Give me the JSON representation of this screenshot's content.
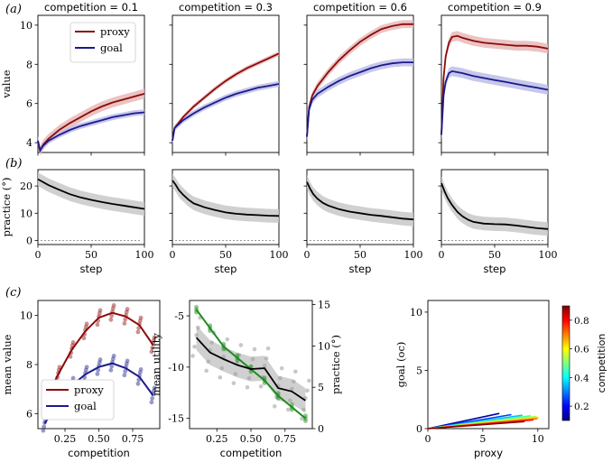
{
  "figure": {
    "row_a_label": "(a)",
    "row_b_label": "(b)",
    "row_c_label": "(c)"
  },
  "chart_data": [
    {
      "type": "line",
      "id": "a1",
      "title": "competition = 0.1",
      "xlabel": "",
      "ylabel": "value",
      "xlim": [
        0,
        100
      ],
      "ylim": [
        3.5,
        10.5
      ],
      "xticks": [
        0,
        50,
        100
      ],
      "yticks": [
        4,
        6,
        8,
        10
      ],
      "legend": {
        "placement": "top-left",
        "entries": [
          "proxy",
          "goal"
        ]
      },
      "series": [
        {
          "name": "proxy",
          "color": "#8b0a0a",
          "band": 0.25,
          "x": [
            0,
            2,
            5,
            10,
            20,
            30,
            40,
            50,
            60,
            70,
            80,
            90,
            100
          ],
          "values": [
            4.1,
            3.6,
            3.9,
            4.2,
            4.65,
            5.0,
            5.3,
            5.6,
            5.85,
            6.05,
            6.2,
            6.35,
            6.5
          ]
        },
        {
          "name": "goal",
          "color": "#1a1a8c",
          "band": 0.15,
          "x": [
            0,
            2,
            5,
            10,
            20,
            30,
            40,
            50,
            60,
            70,
            80,
            90,
            100
          ],
          "values": [
            4.1,
            3.6,
            3.85,
            4.1,
            4.4,
            4.65,
            4.85,
            5.0,
            5.15,
            5.3,
            5.4,
            5.5,
            5.55
          ]
        }
      ]
    },
    {
      "type": "line",
      "id": "a2",
      "title": "competition = 0.3",
      "xlabel": "",
      "ylabel": "",
      "xlim": [
        0,
        100
      ],
      "ylim": [
        3.5,
        10.5
      ],
      "xticks": [
        0,
        50,
        100
      ],
      "yticks": [
        4,
        6,
        8,
        10
      ],
      "series": [
        {
          "name": "proxy",
          "color": "#8b0a0a",
          "band": 0.12,
          "x": [
            0,
            2,
            5,
            10,
            20,
            30,
            40,
            50,
            60,
            70,
            80,
            90,
            100
          ],
          "values": [
            4.1,
            4.75,
            4.95,
            5.3,
            5.85,
            6.3,
            6.75,
            7.15,
            7.5,
            7.8,
            8.05,
            8.3,
            8.55
          ]
        },
        {
          "name": "goal",
          "color": "#1a1a8c",
          "band": 0.15,
          "x": [
            0,
            2,
            5,
            10,
            20,
            30,
            40,
            50,
            60,
            70,
            80,
            90,
            100
          ],
          "values": [
            4.1,
            4.75,
            4.9,
            5.15,
            5.5,
            5.8,
            6.05,
            6.3,
            6.5,
            6.65,
            6.8,
            6.9,
            7.0
          ]
        }
      ]
    },
    {
      "type": "line",
      "id": "a3",
      "title": "competition = 0.6",
      "xlabel": "",
      "ylabel": "",
      "xlim": [
        0,
        100
      ],
      "ylim": [
        3.5,
        10.5
      ],
      "xticks": [
        0,
        50,
        100
      ],
      "yticks": [
        4,
        6,
        8,
        10
      ],
      "series": [
        {
          "name": "proxy",
          "color": "#8b0a0a",
          "band": 0.2,
          "x": [
            0,
            2,
            5,
            10,
            20,
            30,
            40,
            50,
            60,
            70,
            80,
            90,
            100
          ],
          "values": [
            4.3,
            5.8,
            6.4,
            6.9,
            7.6,
            8.2,
            8.7,
            9.15,
            9.5,
            9.8,
            9.95,
            10.05,
            10.05
          ]
        },
        {
          "name": "goal",
          "color": "#1a1a8c",
          "band": 0.2,
          "x": [
            0,
            2,
            5,
            10,
            20,
            30,
            40,
            50,
            60,
            70,
            80,
            90,
            100
          ],
          "values": [
            4.3,
            5.7,
            6.2,
            6.5,
            6.85,
            7.15,
            7.4,
            7.6,
            7.8,
            7.95,
            8.05,
            8.1,
            8.1
          ]
        }
      ]
    },
    {
      "type": "line",
      "id": "a4",
      "title": "competition = 0.9",
      "xlabel": "",
      "ylabel": "",
      "xlim": [
        0,
        100
      ],
      "ylim": [
        3.5,
        10.5
      ],
      "xticks": [
        0,
        50,
        100
      ],
      "yticks": [
        4,
        6,
        8,
        10
      ],
      "series": [
        {
          "name": "proxy",
          "color": "#8b0a0a",
          "band": 0.25,
          "x": [
            0,
            2,
            4,
            7,
            10,
            15,
            20,
            30,
            40,
            50,
            60,
            70,
            80,
            90,
            100
          ],
          "values": [
            4.4,
            7.3,
            8.4,
            9.1,
            9.4,
            9.45,
            9.35,
            9.2,
            9.1,
            9.05,
            9.0,
            8.95,
            8.95,
            8.9,
            8.8
          ]
        },
        {
          "name": "goal",
          "color": "#1a1a8c",
          "band": 0.25,
          "x": [
            0,
            2,
            4,
            7,
            10,
            15,
            20,
            30,
            40,
            50,
            60,
            70,
            80,
            90,
            100
          ],
          "values": [
            4.4,
            6.4,
            7.1,
            7.55,
            7.65,
            7.6,
            7.55,
            7.4,
            7.3,
            7.2,
            7.1,
            7.0,
            6.9,
            6.8,
            6.7
          ]
        }
      ]
    },
    {
      "type": "line",
      "id": "b1",
      "title": "",
      "xlabel": "step",
      "ylabel": "practice (°)",
      "xlim": [
        0,
        100
      ],
      "ylim": [
        -1.5,
        26
      ],
      "xticks": [
        0,
        50,
        100
      ],
      "yticks": [
        0,
        10,
        20
      ],
      "baseline": 0,
      "series": [
        {
          "name": "practice",
          "color": "#000000",
          "band": 2.5,
          "x": [
            0,
            10,
            20,
            30,
            40,
            50,
            60,
            70,
            80,
            90,
            100
          ],
          "values": [
            22.5,
            20.3,
            18.6,
            17.0,
            15.8,
            14.9,
            14.1,
            13.4,
            12.8,
            12.2,
            11.6
          ]
        }
      ]
    },
    {
      "type": "line",
      "id": "b2",
      "title": "",
      "xlabel": "step",
      "ylabel": "",
      "xlim": [
        0,
        100
      ],
      "ylim": [
        -1.5,
        26
      ],
      "xticks": [
        0,
        50,
        100
      ],
      "yticks": [
        0,
        10,
        20
      ],
      "baseline": 0,
      "series": [
        {
          "name": "practice",
          "color": "#000000",
          "band": 2.5,
          "x": [
            0,
            3,
            6,
            10,
            15,
            20,
            30,
            40,
            50,
            60,
            70,
            80,
            90,
            100
          ],
          "values": [
            22.0,
            20.5,
            18.5,
            16.8,
            15.0,
            13.6,
            12.2,
            11.2,
            10.3,
            9.8,
            9.5,
            9.3,
            9.1,
            9.0
          ]
        }
      ]
    },
    {
      "type": "line",
      "id": "b3",
      "title": "",
      "xlabel": "step",
      "ylabel": "",
      "xlim": [
        0,
        100
      ],
      "ylim": [
        -1.5,
        26
      ],
      "xticks": [
        0,
        50,
        100
      ],
      "yticks": [
        0,
        10,
        20
      ],
      "baseline": 0,
      "series": [
        {
          "name": "practice",
          "color": "#000000",
          "band": 2.5,
          "x": [
            0,
            3,
            6,
            10,
            15,
            20,
            30,
            40,
            50,
            60,
            70,
            80,
            90,
            100
          ],
          "values": [
            21.5,
            19.0,
            17.0,
            15.3,
            13.8,
            12.8,
            11.5,
            10.6,
            10.0,
            9.4,
            9.0,
            8.5,
            8.0,
            7.7
          ]
        }
      ]
    },
    {
      "type": "line",
      "id": "b4",
      "title": "",
      "xlabel": "step",
      "ylabel": "",
      "xlim": [
        0,
        100
      ],
      "ylim": [
        -1.5,
        26
      ],
      "xticks": [
        0,
        50,
        100
      ],
      "yticks": [
        0,
        10,
        20
      ],
      "baseline": 0,
      "series": [
        {
          "name": "practice",
          "color": "#000000",
          "band": 2.5,
          "x": [
            0,
            3,
            6,
            10,
            15,
            20,
            25,
            30,
            40,
            50,
            60,
            70,
            80,
            90,
            100
          ],
          "values": [
            21.0,
            18.0,
            15.5,
            13.0,
            10.5,
            8.8,
            7.6,
            6.8,
            6.2,
            6.0,
            5.9,
            5.5,
            5.0,
            4.5,
            4.2
          ]
        }
      ]
    },
    {
      "type": "line",
      "id": "c1",
      "title": "",
      "xlabel": "competition",
      "ylabel": "mean value",
      "xlim": [
        0.05,
        0.95
      ],
      "ylim": [
        5.4,
        10.6
      ],
      "xticks": [
        0.25,
        0.5,
        0.75
      ],
      "xticklabels": [
        "0.25",
        "0.50",
        "0.75"
      ],
      "yticks": [
        6,
        8,
        10
      ],
      "legend": {
        "placement": "bottom-center",
        "entries": [
          "proxy",
          "goal"
        ]
      },
      "categories": [
        0.1,
        0.2,
        0.3,
        0.4,
        0.5,
        0.6,
        0.7,
        0.8,
        0.9
      ],
      "series": [
        {
          "name": "proxy",
          "color": "#8b0a0a",
          "values": [
            6.5,
            7.6,
            8.6,
            9.35,
            9.9,
            10.1,
            9.95,
            9.6,
            8.8
          ]
        },
        {
          "name": "goal",
          "color": "#1a1a8c",
          "values": [
            5.6,
            6.5,
            7.15,
            7.6,
            7.9,
            8.05,
            7.85,
            7.5,
            6.75
          ]
        }
      ]
    },
    {
      "type": "line",
      "id": "c2",
      "title": "",
      "xlabel": "competition",
      "ylabel": "mean utility",
      "ylabel_right": "practice (°)",
      "xlim": [
        0.05,
        0.95
      ],
      "ylim": [
        -16,
        -3.5
      ],
      "ylim_right": [
        0,
        15.5
      ],
      "xticks": [
        0.25,
        0.5,
        0.75
      ],
      "xticklabels": [
        "0.25",
        "0.50",
        "0.75"
      ],
      "yticks": [
        -15,
        -10,
        -5
      ],
      "yticks_right": [
        0,
        5,
        10,
        15
      ],
      "categories": [
        0.1,
        0.2,
        0.3,
        0.4,
        0.5,
        0.6,
        0.7,
        0.8,
        0.9
      ],
      "series": [
        {
          "name": "mean utility",
          "axis": "left",
          "color": "#1e8c1e",
          "values": [
            -4.4,
            -6.2,
            -8.0,
            -9.1,
            -10.2,
            -11.3,
            -12.8,
            -13.9,
            -15.0
          ]
        },
        {
          "name": "practice",
          "axis": "right",
          "color": "#000000",
          "band": 1.5,
          "values": [
            11.0,
            9.2,
            8.4,
            7.7,
            7.2,
            7.3,
            4.9,
            4.5,
            3.4
          ]
        }
      ]
    },
    {
      "type": "line",
      "id": "c3",
      "title": "",
      "xlabel": "proxy",
      "ylabel": "goal (oc)",
      "xlim": [
        0,
        11
      ],
      "ylim": [
        0,
        11
      ],
      "xticks": [
        0,
        5,
        10
      ],
      "yticks": [
        0,
        5,
        10
      ],
      "colorbar": {
        "label": "competition",
        "range": [
          0.1,
          0.9
        ],
        "ticks": [
          "0.2",
          "0.4",
          "0.6",
          "0.8"
        ]
      },
      "series": [
        {
          "name": "0.1",
          "color": "#0000a0",
          "end": [
            6.5,
            1.3
          ]
        },
        {
          "name": "0.2",
          "color": "#0040ff",
          "end": [
            7.6,
            1.2
          ]
        },
        {
          "name": "0.3",
          "color": "#00c0ff",
          "end": [
            8.6,
            1.15
          ]
        },
        {
          "name": "0.4",
          "color": "#40ffb0",
          "end": [
            9.35,
            1.1
          ]
        },
        {
          "name": "0.5",
          "color": "#b0ff40",
          "end": [
            9.9,
            1.05
          ]
        },
        {
          "name": "0.6",
          "color": "#ffd000",
          "end": [
            10.1,
            0.95
          ]
        },
        {
          "name": "0.7",
          "color": "#ff7000",
          "end": [
            9.95,
            0.85
          ]
        },
        {
          "name": "0.8",
          "color": "#f01000",
          "end": [
            9.6,
            0.75
          ]
        },
        {
          "name": "0.9",
          "color": "#800000",
          "end": [
            8.8,
            0.6
          ]
        }
      ]
    }
  ]
}
